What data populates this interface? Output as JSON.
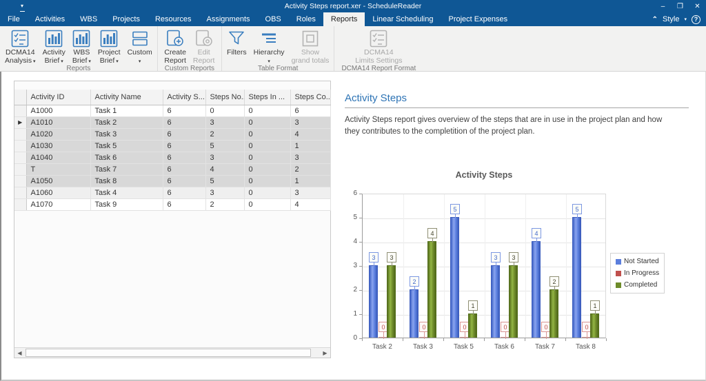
{
  "window": {
    "title": "Activity Steps report.xer - ScheduleReader",
    "controls": {
      "minimize": "–",
      "restore": "❐",
      "close": "✕"
    }
  },
  "menu": {
    "tabs": [
      {
        "label": "File"
      },
      {
        "label": "Activities"
      },
      {
        "label": "WBS"
      },
      {
        "label": "Projects"
      },
      {
        "label": "Resources"
      },
      {
        "label": "Assignments"
      },
      {
        "label": "OBS"
      },
      {
        "label": "Roles"
      },
      {
        "label": "Reports",
        "active": true
      },
      {
        "label": "Linear Scheduling"
      },
      {
        "label": "Project Expenses"
      }
    ],
    "right": {
      "collapse_icon": "⌃",
      "style_label": "Style",
      "dropdown_icon": "▾",
      "help_icon": "?"
    }
  },
  "ribbon": {
    "groups": [
      {
        "label": "Reports",
        "buttons": [
          {
            "lines": [
              "DCMA14",
              "Analysis"
            ],
            "dropdown": true,
            "icon": "checklist-icon",
            "enabled": true
          },
          {
            "lines": [
              "Activity",
              "Brief"
            ],
            "dropdown": true,
            "icon": "bar-chart-icon",
            "enabled": true
          },
          {
            "lines": [
              "WBS",
              "Brief"
            ],
            "dropdown": true,
            "icon": "bar-chart-icon",
            "enabled": true
          },
          {
            "lines": [
              "Project",
              "Brief"
            ],
            "dropdown": true,
            "icon": "bar-chart-icon",
            "enabled": true
          },
          {
            "lines": [
              "Custom",
              ""
            ],
            "dropdown": true,
            "icon": "stacked-icon",
            "enabled": true
          }
        ]
      },
      {
        "label": "Custom Reports",
        "buttons": [
          {
            "lines": [
              "Create",
              "Report"
            ],
            "icon": "create-report-icon",
            "enabled": true
          },
          {
            "lines": [
              "Edit",
              "Report"
            ],
            "icon": "edit-report-icon",
            "enabled": false
          }
        ]
      },
      {
        "label": "Table Format",
        "buttons": [
          {
            "lines": [
              "Filters",
              ""
            ],
            "icon": "funnel-icon",
            "enabled": true
          },
          {
            "lines": [
              "Hierarchy",
              ""
            ],
            "dropdown": true,
            "icon": "hierarchy-icon",
            "enabled": true
          },
          {
            "lines": [
              "Show",
              "grand totals"
            ],
            "icon": "grand-totals-icon",
            "enabled": false
          }
        ]
      },
      {
        "label": "DCMA14 Report Format",
        "buttons": [
          {
            "lines": [
              "DCMA14",
              "Limits Settings"
            ],
            "icon": "checklist-icon",
            "enabled": false
          }
        ]
      }
    ]
  },
  "table": {
    "columns": [
      "",
      "Activity ID",
      "Activity Name",
      "Activity S...",
      "Steps No...",
      "Steps In ...",
      "Steps Co..."
    ],
    "active_row_marker": "▶",
    "rows": [
      {
        "cells": [
          "A1000",
          "Task 1",
          "6",
          "0",
          "0",
          "6"
        ]
      },
      {
        "cells": [
          "A1010",
          "Task 2",
          "6",
          "3",
          "0",
          "3"
        ],
        "selected": true,
        "active": true
      },
      {
        "cells": [
          "A1020",
          "Task 3",
          "6",
          "2",
          "0",
          "4"
        ],
        "selected": true
      },
      {
        "cells": [
          "A1030",
          "Task 5",
          "6",
          "5",
          "0",
          "1"
        ],
        "selected": true
      },
      {
        "cells": [
          "A1040",
          "Task 6",
          "6",
          "3",
          "0",
          "3"
        ],
        "selected": true
      },
      {
        "cells": [
          "T",
          "Task 7",
          "6",
          "4",
          "0",
          "2"
        ],
        "selected": true
      },
      {
        "cells": [
          "A1050",
          "Task 8",
          "6",
          "5",
          "0",
          "1"
        ],
        "selected": true
      },
      {
        "cells": [
          "A1060",
          "Task 4",
          "6",
          "3",
          "0",
          "3"
        ],
        "alt": true
      },
      {
        "cells": [
          "A1070",
          "Task 9",
          "6",
          "2",
          "0",
          "4"
        ]
      }
    ]
  },
  "report": {
    "heading": "Activity Steps",
    "description": "Activity Steps report gives overview of the steps that are in use in the project plan and how they contributes to the completition of the project plan."
  },
  "chart_data": {
    "type": "bar",
    "title": "Activity Steps",
    "categories": [
      "Task 2",
      "Task 3",
      "Task 5",
      "Task 6",
      "Task 7",
      "Task 8"
    ],
    "series": [
      {
        "name": "Not Started",
        "color": "#5b7edd",
        "values": [
          3,
          2,
          5,
          3,
          4,
          5
        ]
      },
      {
        "name": "In Progress",
        "color": "#c0504d",
        "values": [
          0,
          0,
          0,
          0,
          0,
          0
        ]
      },
      {
        "name": "Completed",
        "color": "#6d8b2a",
        "values": [
          3,
          4,
          1,
          3,
          2,
          1
        ]
      }
    ],
    "ylim": [
      0,
      6
    ],
    "yticks": [
      0,
      1,
      2,
      3,
      4,
      5,
      6
    ],
    "grid": true,
    "legend_position": "right",
    "data_labels": true
  },
  "colors": {
    "titlebar": "#0f5795",
    "accent_blue": "#2e74b5",
    "not_started": "#5b7edd",
    "in_progress": "#c0504d",
    "completed": "#6d8b2a"
  }
}
